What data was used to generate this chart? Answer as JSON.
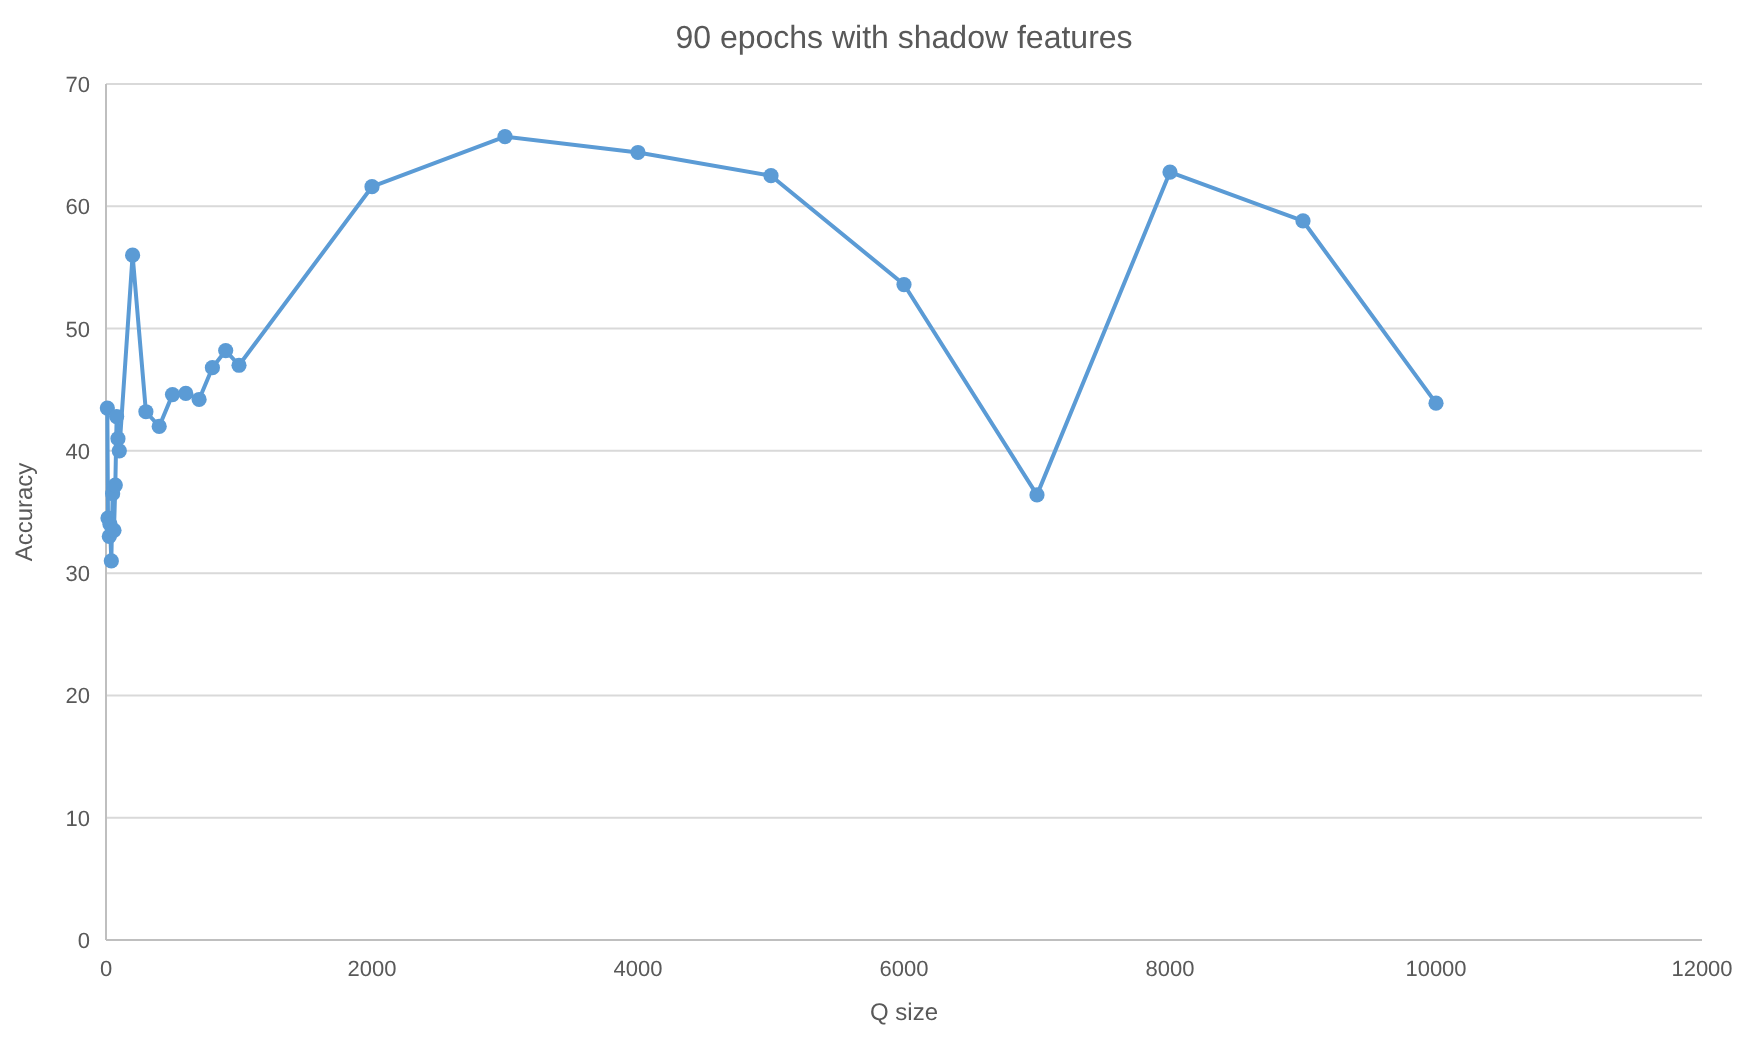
{
  "chart_data": {
    "type": "line",
    "title": "90 epochs with shadow features",
    "xlabel": "Q size",
    "ylabel": "Accuracy",
    "series": [
      {
        "color": "#5b9bd5",
        "x": [
          10,
          15,
          25,
          30,
          40,
          50,
          60,
          70,
          80,
          90,
          100,
          200,
          300,
          400,
          500,
          600,
          700,
          800,
          900,
          1000,
          2000,
          3000,
          4000,
          5000,
          6000,
          7000,
          8000,
          9000,
          10000
        ],
        "values": [
          43.5,
          34.5,
          33,
          34,
          31,
          36.5,
          33.5,
          37.2,
          42.8,
          41,
          40,
          56,
          43.2,
          42,
          44.6,
          44.7,
          44.2,
          46.8,
          48.2,
          47,
          61.6,
          65.7,
          64.4,
          62.5,
          53.6,
          36.4,
          62.8,
          58.8,
          43.9
        ]
      }
    ],
    "xlim": [
      0,
      12000
    ],
    "xticks": [
      0,
      2000,
      4000,
      6000,
      8000,
      10000,
      12000
    ],
    "ylim": [
      0,
      70
    ],
    "yticks": [
      0,
      10,
      20,
      30,
      40,
      50,
      60,
      70
    ],
    "grid": "y",
    "marker": "circle",
    "line_style": "solid"
  }
}
